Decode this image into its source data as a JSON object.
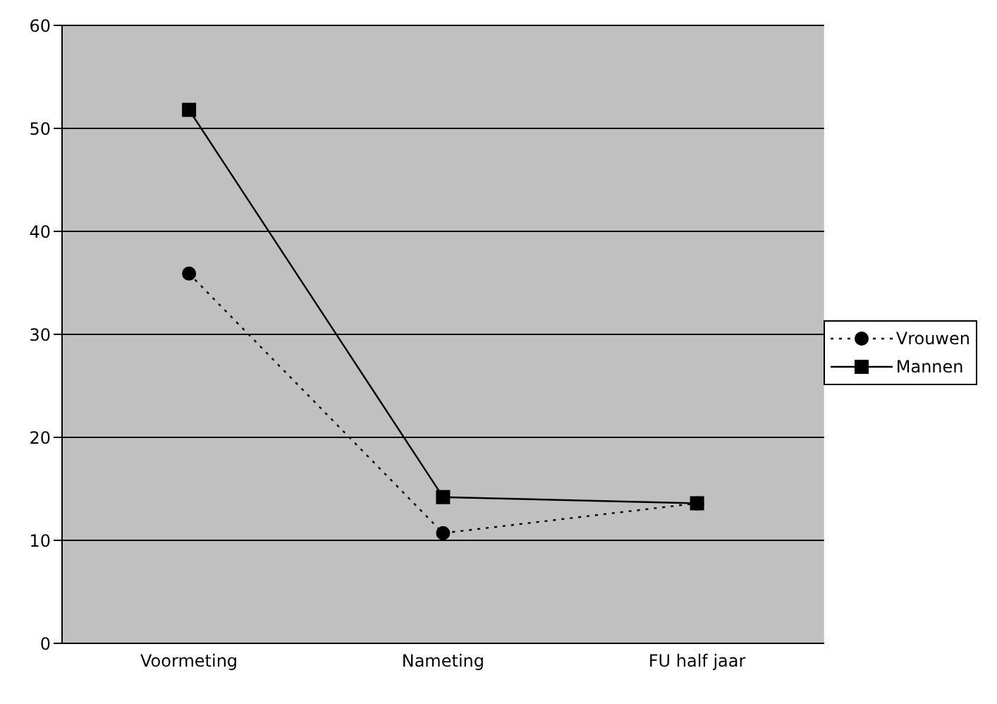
{
  "chart_data": {
    "type": "line",
    "categories": [
      "Voormeting",
      "Nameting",
      "FU half jaar"
    ],
    "series": [
      {
        "name": "Vrouwen",
        "color": "#000000",
        "values": [
          35.9,
          10.7,
          13.6
        ],
        "marker": "circle",
        "line_style": "dotted"
      },
      {
        "name": "Mannen",
        "color": "#000000",
        "values": [
          51.8,
          14.2,
          13.6
        ],
        "marker": "square",
        "line_style": "solid"
      }
    ],
    "ylim": [
      0,
      60
    ],
    "yticks": [
      0,
      10,
      20,
      30,
      40,
      50,
      60
    ],
    "grid": "y",
    "legend": "right"
  }
}
